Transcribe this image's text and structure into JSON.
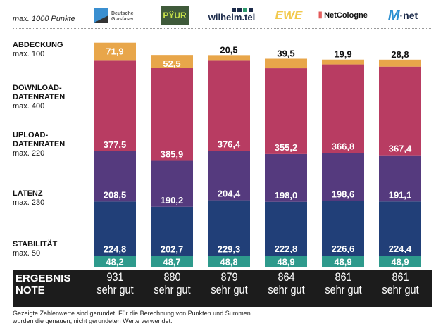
{
  "header": {
    "max_note": "max. 1000 Punkte"
  },
  "providers": [
    {
      "name": "Deutsche Glasfaser",
      "line1": "Deutsche",
      "line2": "Glasfaser"
    },
    {
      "name": "PYUR",
      "logo_text": "PŸUR"
    },
    {
      "name": "wilhelm.tel",
      "logo_text": "wilhelm.tel"
    },
    {
      "name": "EWE",
      "logo_text": "EWE"
    },
    {
      "name": "NetCologne",
      "logo_text": "NetCologne"
    },
    {
      "name": "M-net",
      "logo_text": "M",
      "logo_suffix": "·net"
    }
  ],
  "row_labels": [
    {
      "title": [
        "ABDECKUNG"
      ],
      "max": "max. 100"
    },
    {
      "title": [
        "DOWNLOAD-",
        "DATENRATEN"
      ],
      "max": "max. 400"
    },
    {
      "title": [
        "UPLOAD-",
        "DATENRATEN"
      ],
      "max": "max. 220"
    },
    {
      "title": [
        "LATENZ"
      ],
      "max": "max. 230"
    },
    {
      "title": [
        "STABILITÄT"
      ],
      "max": "max. 50"
    }
  ],
  "chart_data": {
    "type": "bar",
    "stacked": true,
    "categories": [
      "Deutsche Glasfaser",
      "PYUR",
      "wilhelm.tel",
      "EWE",
      "NetCologne",
      "M-net"
    ],
    "ylim": [
      0,
      1000
    ],
    "series": [
      {
        "name": "STABILITÄT",
        "color": "#2E9A8C",
        "values": [
          48.2,
          48.7,
          48.8,
          48.9,
          48.9,
          48.9
        ],
        "labels": [
          "48,2",
          "48,7",
          "48,8",
          "48,9",
          "48,9",
          "48,9"
        ]
      },
      {
        "name": "LATENZ",
        "color": "#213F78",
        "values": [
          224.8,
          202.7,
          229.3,
          222.8,
          226.6,
          224.4
        ],
        "labels": [
          "224,8",
          "202,7",
          "229,3",
          "222,8",
          "226,6",
          "224,4"
        ]
      },
      {
        "name": "UPLOAD-DATENRATEN",
        "color": "#553A7E",
        "values": [
          208.5,
          190.2,
          204.4,
          198.0,
          198.6,
          191.1
        ],
        "labels": [
          "208,5",
          "190,2",
          "204,4",
          "198,0",
          "198,6",
          "191,1"
        ]
      },
      {
        "name": "DOWNLOAD-DATENRATEN",
        "color": "#B83C62",
        "values": [
          377.5,
          385.9,
          376.4,
          355.2,
          366.8,
          367.4
        ],
        "labels": [
          "377,5",
          "385,9",
          "376,4",
          "355,2",
          "366,8",
          "367,4"
        ]
      },
      {
        "name": "ABDECKUNG",
        "color": "#E8A64A",
        "values": [
          71.9,
          52.5,
          20.5,
          39.5,
          19.9,
          28.8
        ],
        "labels": [
          "71,9",
          "52,5",
          "20,5",
          "39,5",
          "19,9",
          "28,8"
        ]
      }
    ]
  },
  "result": {
    "label_score": "ERGEBNIS",
    "label_grade": "NOTE",
    "scores": [
      "931",
      "880",
      "879",
      "864",
      "861",
      "861"
    ],
    "grades": [
      "sehr gut",
      "sehr gut",
      "sehr gut",
      "sehr gut",
      "sehr gut",
      "sehr gut"
    ]
  },
  "footnote": [
    "Gezeigte Zahlenwerte sind gerundet. Für die Berechnung von Punkten und Summen",
    "wurden die genauen, nicht gerundeten Werte verwendet."
  ]
}
